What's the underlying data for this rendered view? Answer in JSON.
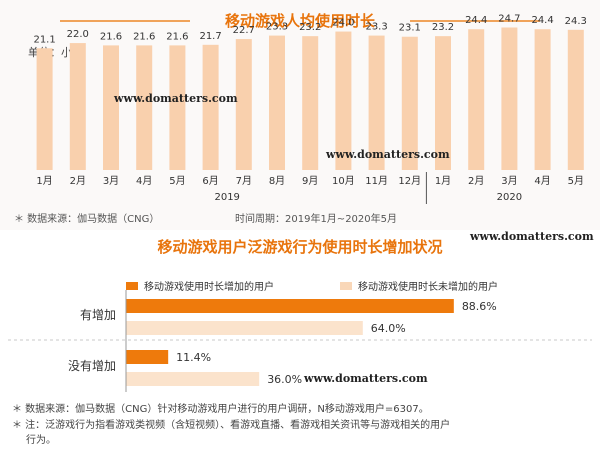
{
  "top": {
    "title": "移动游戏人均使用时长",
    "unit": "单位：小时",
    "source": "＊ 数据来源：伽马数据（CNG）",
    "period": "时间周期：2019年1月~2020年5月",
    "year_labels": [
      "2019",
      "2020"
    ]
  },
  "bottom": {
    "title": "移动游戏用户泛游戏行为使用时长增加状况",
    "legend": [
      "移动游戏使用时长增加的用户",
      "移动游戏使用时长未增加的用户"
    ],
    "notes": [
      "＊ 数据来源：伽马数据（CNG）针对移动游戏用户进行的用户调研，N移动游戏用户=6307。",
      "＊ 注：泛游戏行为指看游戏类视频（含短视频）、看游戏直播、看游戏相关资讯等与游戏相关的用户",
      "行为。"
    ]
  },
  "watermarks": [
    "www.domatters.com",
    "www.domatters.com",
    "www.domatters.com",
    "www.domatters.com"
  ],
  "colors": {
    "accent": "#e8740c",
    "bar_dark": "#ee7a0c",
    "bar_light": "#f9d7b8",
    "bar_light2": "#fbe3cc"
  },
  "chart_data": [
    {
      "type": "bar",
      "title": "移动游戏人均使用时长",
      "ylabel": "单位：小时",
      "categories": [
        "1月",
        "2月",
        "3月",
        "4月",
        "5月",
        "6月",
        "7月",
        "8月",
        "9月",
        "10月",
        "11月",
        "12月",
        "1月",
        "2月",
        "3月",
        "4月",
        "5月"
      ],
      "groups": [
        {
          "label": "2019",
          "from": 0,
          "to": 11
        },
        {
          "label": "2020",
          "from": 12,
          "to": 16
        }
      ],
      "values": [
        21.1,
        22.0,
        21.6,
        21.6,
        21.6,
        21.7,
        22.7,
        23.3,
        23.2,
        24.0,
        23.3,
        23.1,
        23.2,
        24.4,
        24.7,
        24.4,
        24.3
      ],
      "ylim": [
        0,
        26
      ]
    },
    {
      "type": "bar",
      "orientation": "horizontal",
      "title": "移动游戏用户泛游戏行为使用时长增加状况",
      "categories": [
        "有增加",
        "没有增加"
      ],
      "series": [
        {
          "name": "移动游戏使用时长增加的用户",
          "values": [
            88.6,
            11.4
          ]
        },
        {
          "name": "移动游戏使用时长未增加的用户",
          "values": [
            64.0,
            36.0
          ]
        }
      ],
      "value_labels": [
        [
          "88.6%",
          "64.0%"
        ],
        [
          "11.4%",
          "36.0%"
        ]
      ],
      "xlim": [
        0,
        100
      ]
    }
  ]
}
